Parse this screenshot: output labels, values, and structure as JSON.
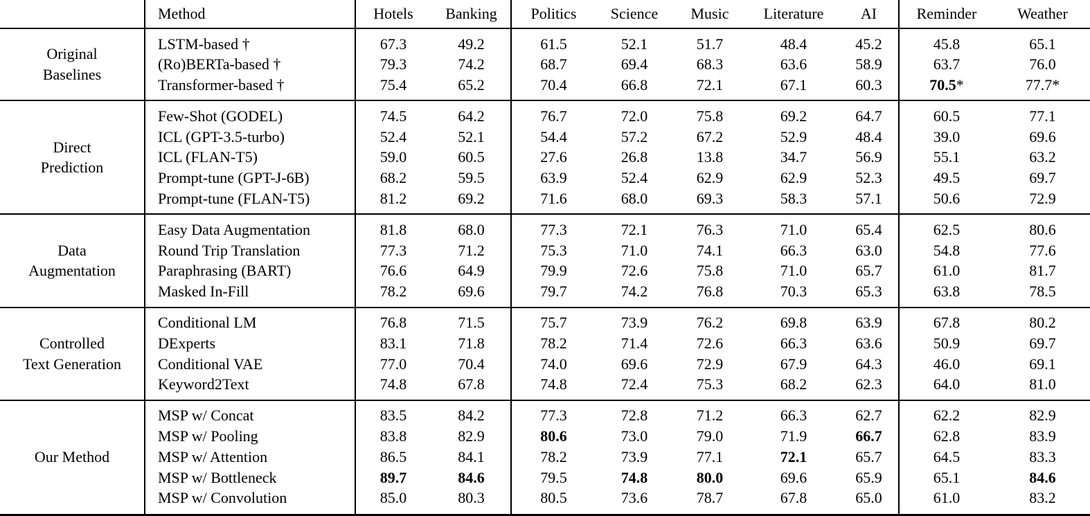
{
  "colors": {
    "text": "#000000",
    "background": "#ffffff",
    "rules": "#000000"
  },
  "table": {
    "columns": [
      "Method",
      "Hotels",
      "Banking",
      "Politics",
      "Science",
      "Music",
      "Literature",
      "AI",
      "Reminder",
      "Weather"
    ],
    "sections": [
      {
        "lines": [
          "Original",
          "Baselines"
        ],
        "rows": [
          {
            "method": "LSTM-based †",
            "values": [
              "67.3",
              "49.2",
              "61.5",
              "52.1",
              "51.7",
              "48.4",
              "45.2",
              "45.8",
              "65.1"
            ],
            "bold": []
          },
          {
            "method": "(Ro)BERTa-based †",
            "values": [
              "79.3",
              "74.2",
              "68.7",
              "69.4",
              "68.3",
              "63.6",
              "58.9",
              "63.7",
              "76.0"
            ],
            "bold": []
          },
          {
            "method": "Transformer-based †",
            "values": [
              "75.4",
              "65.2",
              "70.4",
              "66.8",
              "72.1",
              "67.1",
              "60.3",
              "70.5*",
              "77.7*"
            ],
            "bold": [
              7
            ]
          }
        ]
      },
      {
        "lines": [
          "Direct",
          "Prediction"
        ],
        "rows": [
          {
            "method": "Few-Shot (GODEL)",
            "values": [
              "74.5",
              "64.2",
              "76.7",
              "72.0",
              "75.8",
              "69.2",
              "64.7",
              "60.5",
              "77.1"
            ],
            "bold": []
          },
          {
            "method": "ICL (GPT-3.5-turbo)",
            "values": [
              "52.4",
              "52.1",
              "54.4",
              "57.2",
              "67.2",
              "52.9",
              "48.4",
              "39.0",
              "69.6"
            ],
            "bold": []
          },
          {
            "method": "ICL (FLAN-T5)",
            "values": [
              "59.0",
              "60.5",
              "27.6",
              "26.8",
              "13.8",
              "34.7",
              "56.9",
              "55.1",
              "63.2"
            ],
            "bold": []
          },
          {
            "method": "Prompt-tune (GPT-J-6B)",
            "values": [
              "68.2",
              "59.5",
              "63.9",
              "52.4",
              "62.9",
              "62.9",
              "52.3",
              "49.5",
              "69.7"
            ],
            "bold": []
          },
          {
            "method": "Prompt-tune (FLAN-T5)",
            "values": [
              "81.2",
              "69.2",
              "71.6",
              "68.0",
              "69.3",
              "58.3",
              "57.1",
              "50.6",
              "72.9"
            ],
            "bold": []
          }
        ]
      },
      {
        "lines": [
          "Data",
          "Augmentation"
        ],
        "rows": [
          {
            "method": "Easy Data Augmentation",
            "values": [
              "81.8",
              "68.0",
              "77.3",
              "72.1",
              "76.3",
              "71.0",
              "65.4",
              "62.5",
              "80.6"
            ],
            "bold": []
          },
          {
            "method": "Round Trip Translation",
            "values": [
              "77.3",
              "71.2",
              "75.3",
              "71.0",
              "74.1",
              "66.3",
              "63.0",
              "54.8",
              "77.6"
            ],
            "bold": []
          },
          {
            "method": "Paraphrasing (BART)",
            "values": [
              "76.6",
              "64.9",
              "79.9",
              "72.6",
              "75.8",
              "71.0",
              "65.7",
              "61.0",
              "81.7"
            ],
            "bold": []
          },
          {
            "method": "Masked In-Fill",
            "values": [
              "78.2",
              "69.6",
              "79.7",
              "74.2",
              "76.8",
              "70.3",
              "65.3",
              "63.8",
              "78.5"
            ],
            "bold": []
          }
        ]
      },
      {
        "lines": [
          "Controlled",
          "Text Generation"
        ],
        "rows": [
          {
            "method": "Conditional LM",
            "values": [
              "76.8",
              "71.5",
              "75.7",
              "73.9",
              "76.2",
              "69.8",
              "63.9",
              "67.8",
              "80.2"
            ],
            "bold": []
          },
          {
            "method": "DExperts",
            "values": [
              "83.1",
              "71.8",
              "78.2",
              "71.4",
              "72.6",
              "66.3",
              "63.6",
              "50.9",
              "69.7"
            ],
            "bold": []
          },
          {
            "method": "Conditional VAE",
            "values": [
              "77.0",
              "70.4",
              "74.0",
              "69.6",
              "72.9",
              "67.9",
              "64.3",
              "46.0",
              "69.1"
            ],
            "bold": []
          },
          {
            "method": "Keyword2Text",
            "values": [
              "74.8",
              "67.8",
              "74.8",
              "72.4",
              "75.3",
              "68.2",
              "62.3",
              "64.0",
              "81.0"
            ],
            "bold": []
          }
        ]
      },
      {
        "lines": [
          "Our Method"
        ],
        "rows": [
          {
            "method": "MSP w/ Concat",
            "values": [
              "83.5",
              "84.2",
              "77.3",
              "72.8",
              "71.2",
              "66.3",
              "62.7",
              "62.2",
              "82.9"
            ],
            "bold": []
          },
          {
            "method": "MSP w/ Pooling",
            "values": [
              "83.8",
              "82.9",
              "80.6",
              "73.0",
              "79.0",
              "71.9",
              "66.7",
              "62.8",
              "83.9"
            ],
            "bold": [
              2,
              6
            ]
          },
          {
            "method": "MSP w/ Attention",
            "values": [
              "86.5",
              "84.1",
              "78.2",
              "73.9",
              "77.1",
              "72.1",
              "65.7",
              "64.5",
              "83.3"
            ],
            "bold": [
              5
            ]
          },
          {
            "method": "MSP w/ Bottleneck",
            "values": [
              "89.7",
              "84.6",
              "79.5",
              "74.8",
              "80.0",
              "69.6",
              "65.9",
              "65.1",
              "84.6"
            ],
            "bold": [
              0,
              1,
              3,
              4,
              8
            ]
          },
          {
            "method": "MSP w/ Convolution",
            "values": [
              "85.0",
              "80.3",
              "80.5",
              "73.6",
              "78.7",
              "67.8",
              "65.0",
              "61.0",
              "83.2"
            ],
            "bold": []
          }
        ]
      }
    ]
  }
}
